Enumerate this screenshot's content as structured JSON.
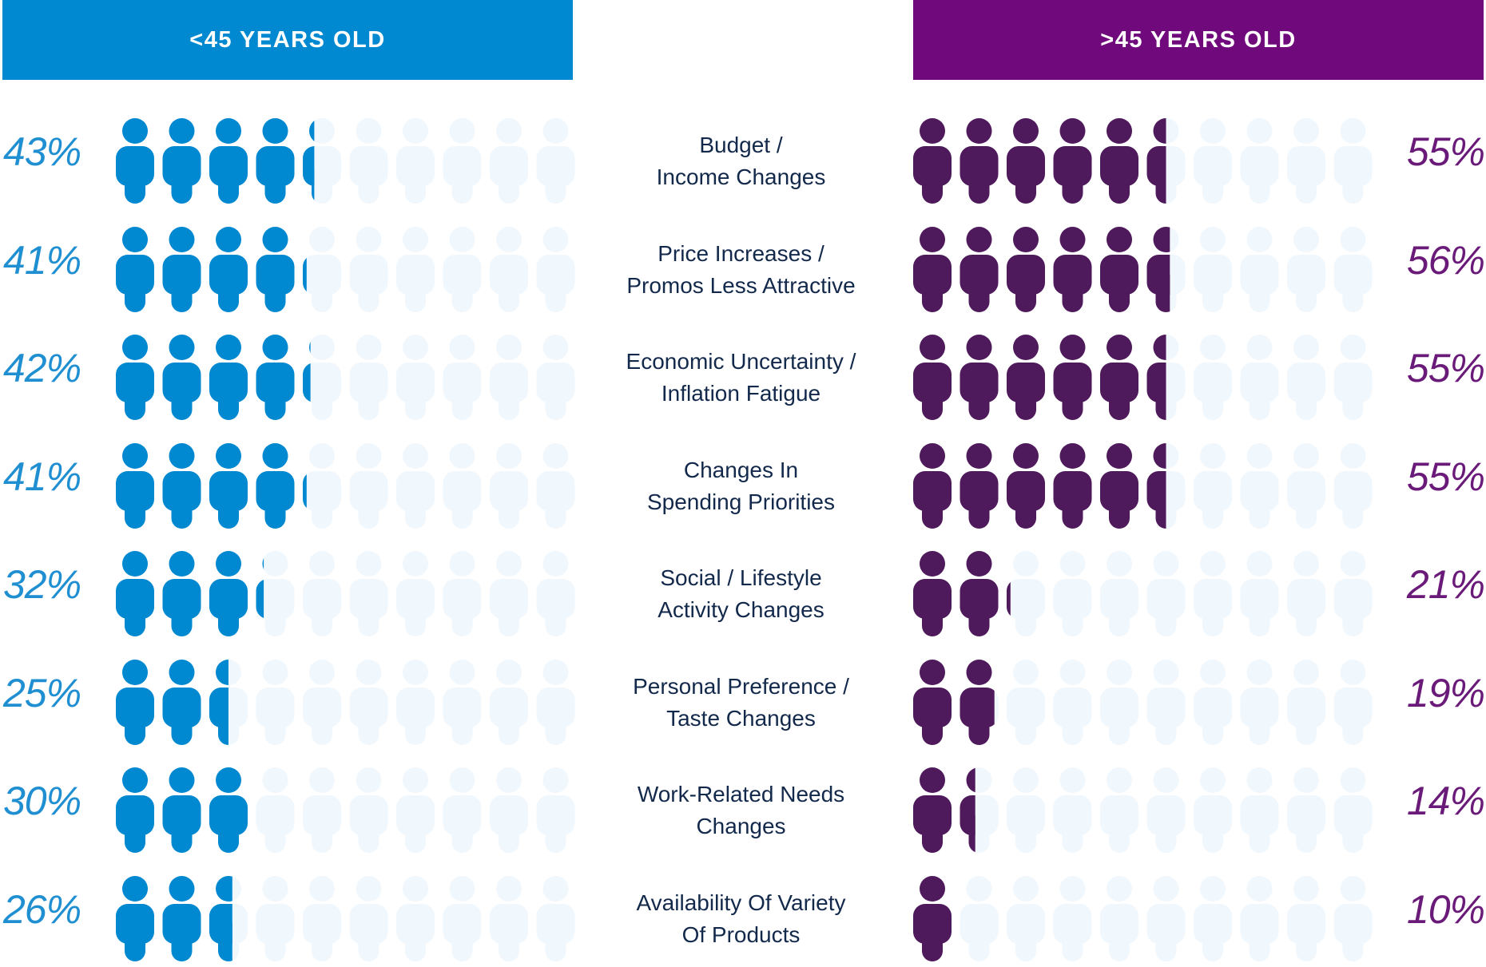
{
  "headers": {
    "left": "<45 YEARS OLD",
    "right": ">45 YEARS OLD"
  },
  "colors": {
    "left_header": "#0088d1",
    "right_header": "#700a7c",
    "left_icon": "#0088d1",
    "right_icon": "#4f1a5c",
    "empty_icon": "#f0f7fd"
  },
  "chart_data": {
    "type": "pictograph",
    "icons_per_row": 10,
    "series": [
      {
        "name": "<45 YEARS OLD",
        "values": [
          43,
          41,
          42,
          41,
          32,
          25,
          30,
          26
        ]
      },
      {
        "name": ">45 YEARS OLD",
        "values": [
          55,
          56,
          55,
          55,
          21,
          19,
          14,
          10
        ]
      }
    ],
    "categories": [
      [
        "Budget /",
        "Income Changes"
      ],
      [
        "Price Increases /",
        "Promos Less Attractive"
      ],
      [
        "Economic Uncertainty /",
        "Inflation Fatigue"
      ],
      [
        "Changes In",
        "Spending Priorities"
      ],
      [
        "Social / Lifestyle",
        "Activity Changes"
      ],
      [
        "Personal Preference /",
        "Taste Changes"
      ],
      [
        "Work-Related Needs",
        "Changes"
      ],
      [
        "Availability Of Variety",
        "Of Products"
      ]
    ],
    "labels_left": [
      "43%",
      "41%",
      "42%",
      "41%",
      "32%",
      "25%",
      "30%",
      "26%"
    ],
    "labels_right": [
      "55%",
      "56%",
      "55%",
      "55%",
      "21%",
      "19%",
      "14%",
      "10%"
    ]
  }
}
